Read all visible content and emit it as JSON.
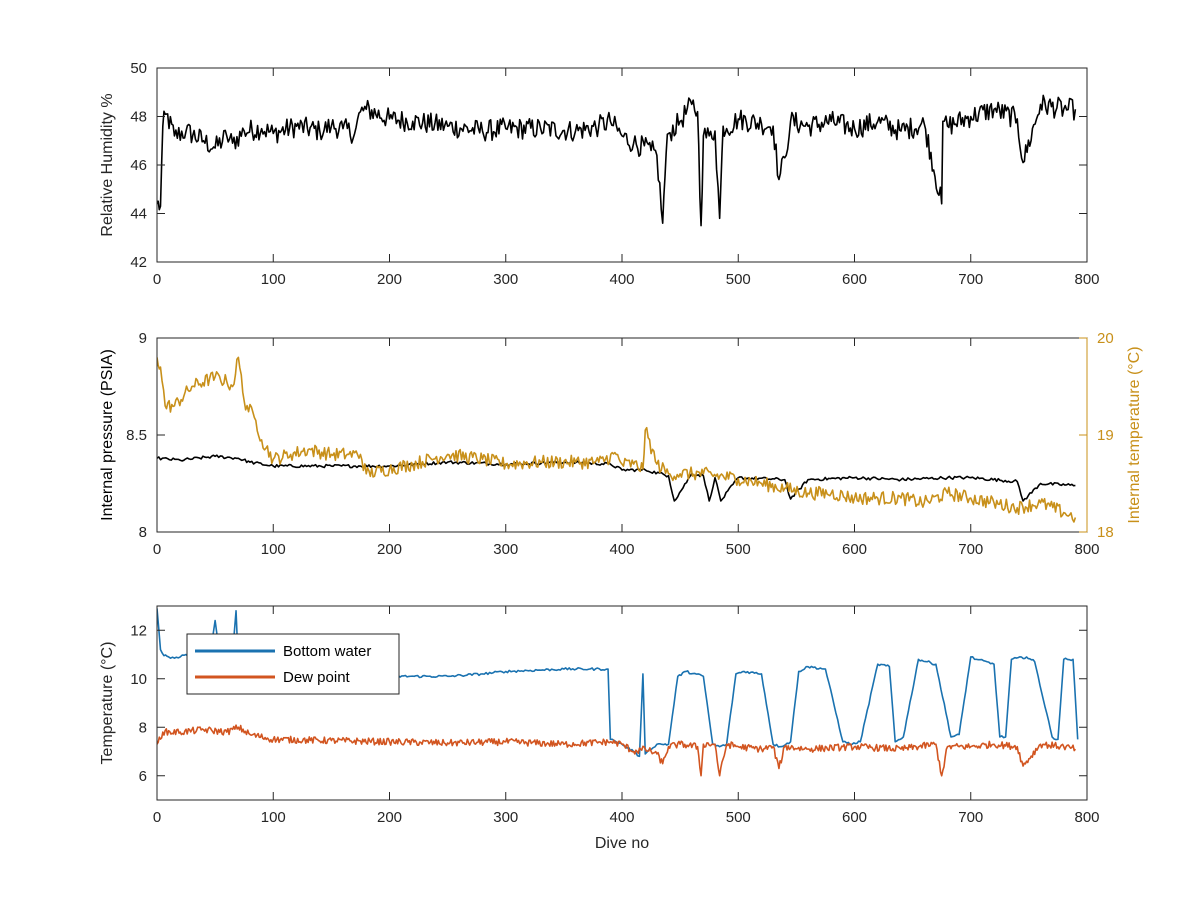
{
  "colors": {
    "axis": "#262626",
    "black_series": "#000000",
    "gold_series": "#c8901a",
    "blue_series": "#1a72b0",
    "orange_series": "#d25520"
  },
  "chart_data": [
    {
      "type": "line",
      "title": "",
      "xlabel": "",
      "ylabel": "Relative Humidity %",
      "xlim": [
        0,
        800
      ],
      "ylim": [
        42,
        50
      ],
      "xticks": [
        "0",
        "100",
        "200",
        "300",
        "400",
        "500",
        "600",
        "700",
        "800"
      ],
      "yticks": [
        "42",
        "44",
        "46",
        "48",
        "50"
      ],
      "legend": "none",
      "series": [
        {
          "color": "#000000",
          "x": [
            0,
            3,
            5,
            8,
            15,
            25,
            40,
            50,
            60,
            65,
            75,
            90,
            100,
            120,
            140,
            150,
            160,
            170,
            175,
            180,
            200,
            220,
            250,
            280,
            300,
            330,
            360,
            380,
            390,
            400,
            410,
            425,
            430,
            435,
            438,
            440,
            450,
            460,
            465,
            468,
            470,
            475,
            480,
            484,
            487,
            490,
            500,
            520,
            530,
            535,
            540,
            545,
            560,
            580,
            600,
            620,
            640,
            660,
            675,
            676,
            680,
            700,
            720,
            740,
            745,
            760,
            780,
            790
          ],
          "y": [
            44.4,
            44.3,
            47.6,
            48.1,
            47.2,
            47.4,
            47.0,
            46.7,
            47.2,
            46.9,
            47.4,
            47.5,
            47.3,
            47.6,
            47.4,
            47.6,
            47.5,
            47.3,
            48.2,
            48.3,
            47.9,
            47.8,
            47.6,
            47.4,
            47.5,
            47.5,
            47.4,
            47.6,
            47.8,
            47.2,
            46.9,
            46.6,
            46.4,
            43.6,
            46.5,
            47.3,
            47.8,
            48.5,
            48.2,
            43.5,
            47.2,
            47.2,
            47.4,
            43.8,
            47.6,
            47.5,
            47.9,
            47.7,
            47.6,
            45.4,
            46.3,
            47.8,
            47.6,
            47.8,
            47.5,
            47.8,
            47.4,
            47.7,
            44.4,
            47.8,
            47.6,
            48.0,
            48.3,
            47.9,
            46.1,
            48.5,
            48.3,
            48.3
          ]
        }
      ]
    },
    {
      "type": "line",
      "title": "",
      "xlabel": "",
      "ylabel": "Internal pressure (PSIA)",
      "y2label": "Internal temperature (°C)",
      "xlim": [
        0,
        800
      ],
      "ylim": [
        8,
        9
      ],
      "y2lim": [
        18,
        20
      ],
      "xticks": [
        "0",
        "100",
        "200",
        "300",
        "400",
        "500",
        "600",
        "700",
        "800"
      ],
      "yticks": [
        "8",
        "8.5",
        "9"
      ],
      "y2ticks": [
        "18",
        "19",
        "20"
      ],
      "legend": "none",
      "series": [
        {
          "axis": "left",
          "color": "#000000",
          "x": [
            0,
            20,
            50,
            70,
            80,
            100,
            150,
            175,
            200,
            250,
            300,
            350,
            390,
            400,
            420,
            440,
            445,
            460,
            470,
            475,
            480,
            485,
            500,
            540,
            545,
            560,
            600,
            640,
            680,
            700,
            740,
            745,
            760,
            790
          ],
          "y": [
            8.38,
            8.37,
            8.39,
            8.38,
            8.36,
            8.34,
            8.34,
            8.34,
            8.34,
            8.36,
            8.35,
            8.36,
            8.35,
            8.32,
            8.32,
            8.29,
            8.16,
            8.3,
            8.29,
            8.16,
            8.28,
            8.16,
            8.28,
            8.27,
            8.17,
            8.27,
            8.28,
            8.27,
            8.28,
            8.28,
            8.26,
            8.16,
            8.25,
            8.24
          ]
        },
        {
          "axis": "right",
          "color": "#c8901a",
          "x": [
            0,
            3,
            7,
            15,
            30,
            50,
            60,
            65,
            70,
            75,
            85,
            90,
            100,
            115,
            130,
            150,
            165,
            175,
            180,
            200,
            220,
            250,
            280,
            300,
            330,
            360,
            380,
            395,
            400,
            410,
            418,
            420,
            430,
            440,
            450,
            470,
            500,
            520,
            540,
            560,
            580,
            600,
            620,
            640,
            660,
            680,
            700,
            720,
            740,
            760,
            780,
            790
          ],
          "y": [
            19.8,
            19.7,
            19.3,
            19.3,
            19.5,
            19.6,
            19.55,
            19.5,
            19.8,
            19.35,
            19.15,
            18.95,
            18.75,
            18.8,
            18.85,
            18.8,
            18.8,
            18.8,
            18.6,
            18.65,
            18.7,
            18.8,
            18.75,
            18.7,
            18.72,
            18.72,
            18.72,
            18.8,
            18.7,
            18.7,
            18.65,
            19.05,
            18.7,
            18.6,
            18.6,
            18.6,
            18.55,
            18.5,
            18.45,
            18.4,
            18.4,
            18.35,
            18.35,
            18.35,
            18.3,
            18.4,
            18.35,
            18.3,
            18.25,
            18.3,
            18.2,
            18.15
          ]
        }
      ]
    },
    {
      "type": "line",
      "title": "",
      "xlabel": "Dive no",
      "ylabel": "Temperature (°C)",
      "xlim": [
        0,
        800
      ],
      "ylim": [
        5,
        13
      ],
      "xticks": [
        "0",
        "100",
        "200",
        "300",
        "400",
        "500",
        "600",
        "700",
        "800"
      ],
      "yticks": [
        "6",
        "8",
        "10",
        "12"
      ],
      "legend": "top-left",
      "series": [
        {
          "name": "Bottom water",
          "color": "#1a72b0",
          "x": [
            0,
            3,
            6,
            10,
            15,
            20,
            25,
            30,
            40,
            45,
            50,
            55,
            60,
            65,
            68,
            70,
            75,
            80,
            100,
            150,
            200,
            250,
            280,
            300,
            350,
            388,
            390,
            395,
            400,
            410,
            415,
            418,
            420,
            422,
            430,
            440,
            448,
            455,
            470,
            478,
            484,
            490,
            498,
            505,
            520,
            530,
            536,
            545,
            552,
            560,
            575,
            590,
            598,
            605,
            620,
            630,
            635,
            642,
            655,
            670,
            683,
            690,
            700,
            705,
            720,
            725,
            730,
            735,
            748,
            755,
            770,
            775,
            780,
            788,
            792
          ],
          "y": [
            12.9,
            11.2,
            10.95,
            10.9,
            10.85,
            10.9,
            11.0,
            10.8,
            10.8,
            10.9,
            12.4,
            10.6,
            10.5,
            11.0,
            12.8,
            10.5,
            10.4,
            10.3,
            10.1,
            10.1,
            10.1,
            10.1,
            10.2,
            10.3,
            10.4,
            10.4,
            7.5,
            7.4,
            7.3,
            7.0,
            6.8,
            10.2,
            6.9,
            7.0,
            7.3,
            7.3,
            10.1,
            10.3,
            10.1,
            7.3,
            7.2,
            7.3,
            10.2,
            10.3,
            10.2,
            7.3,
            7.2,
            7.4,
            10.3,
            10.5,
            10.4,
            7.4,
            7.3,
            7.4,
            10.6,
            10.5,
            7.4,
            7.6,
            10.8,
            10.6,
            7.6,
            7.7,
            10.9,
            10.8,
            10.6,
            7.6,
            7.6,
            10.8,
            10.9,
            10.7,
            7.6,
            7.5,
            10.8,
            10.8,
            7.5
          ]
        },
        {
          "name": "Dew point",
          "color": "#d25520",
          "x": [
            0,
            5,
            20,
            40,
            60,
            70,
            80,
            100,
            150,
            200,
            250,
            300,
            350,
            390,
            400,
            410,
            420,
            430,
            435,
            440,
            450,
            465,
            468,
            470,
            480,
            484,
            490,
            500,
            520,
            530,
            535,
            540,
            560,
            600,
            640,
            670,
            675,
            680,
            700,
            720,
            740,
            745,
            760,
            780,
            790
          ],
          "y": [
            7.3,
            7.8,
            7.8,
            7.9,
            7.8,
            8.0,
            7.7,
            7.5,
            7.45,
            7.4,
            7.35,
            7.4,
            7.3,
            7.4,
            7.3,
            7.0,
            7.1,
            6.9,
            6.5,
            7.2,
            7.3,
            7.2,
            6.0,
            7.3,
            7.3,
            6.0,
            7.3,
            7.2,
            7.1,
            7.2,
            6.3,
            7.2,
            7.1,
            7.2,
            7.1,
            7.3,
            6.0,
            7.2,
            7.2,
            7.3,
            7.2,
            6.4,
            7.3,
            7.2,
            7.1
          ]
        }
      ]
    }
  ]
}
